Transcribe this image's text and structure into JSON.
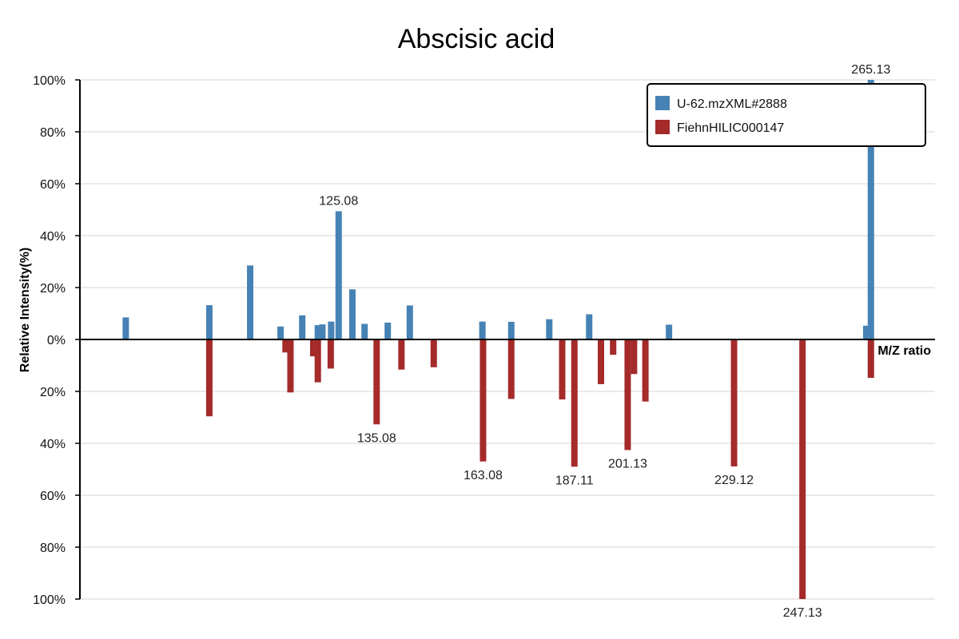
{
  "chart_data": {
    "type": "bar",
    "title": "Abscisic acid",
    "xlabel": "M/Z ratio",
    "ylabel": "Relative Intensity(%)",
    "ylim": [
      -100,
      100
    ],
    "y_ticks": [
      "100%",
      "80%",
      "60%",
      "40%",
      "20%",
      "0%",
      "20%",
      "40%",
      "60%",
      "80%",
      "100%"
    ],
    "xlim": [
      57,
      282
    ],
    "legend_position": "top-right",
    "grid": true,
    "colors": {
      "top": "#4682b4",
      "bottom": "#a52a2a"
    },
    "series": [
      {
        "name": "U-62.mzXML#2888",
        "direction": "up",
        "points": [
          {
            "mz": 69.07,
            "intensity": 8.5
          },
          {
            "mz": 91.05,
            "intensity": 13.2
          },
          {
            "mz": 101.8,
            "intensity": 28.5
          },
          {
            "mz": 109.8,
            "intensity": 5.0
          },
          {
            "mz": 115.5,
            "intensity": 9.3
          },
          {
            "mz": 119.6,
            "intensity": 5.5
          },
          {
            "mz": 120.8,
            "intensity": 5.8
          },
          {
            "mz": 123.1,
            "intensity": 6.9
          },
          {
            "mz": 125.08,
            "intensity": 49.4,
            "label": "125.08"
          },
          {
            "mz": 128.7,
            "intensity": 19.3
          },
          {
            "mz": 131.9,
            "intensity": 6.0
          },
          {
            "mz": 138.0,
            "intensity": 6.5
          },
          {
            "mz": 143.8,
            "intensity": 13.1
          },
          {
            "mz": 162.9,
            "intensity": 6.9
          },
          {
            "mz": 170.5,
            "intensity": 6.8
          },
          {
            "mz": 180.5,
            "intensity": 7.8
          },
          {
            "mz": 191.0,
            "intensity": 9.7
          },
          {
            "mz": 212.0,
            "intensity": 5.7
          },
          {
            "mz": 263.9,
            "intensity": 5.3
          },
          {
            "mz": 265.13,
            "intensity": 100,
            "label": "265.13"
          }
        ]
      },
      {
        "name": "FiehnHILIC000147",
        "direction": "down",
        "points": [
          {
            "mz": 91.05,
            "intensity": 29.6
          },
          {
            "mz": 111.1,
            "intensity": 5.0
          },
          {
            "mz": 112.4,
            "intensity": 20.4
          },
          {
            "mz": 118.4,
            "intensity": 6.5
          },
          {
            "mz": 119.6,
            "intensity": 16.5
          },
          {
            "mz": 123.0,
            "intensity": 11.2
          },
          {
            "mz": 135.08,
            "intensity": 32.7,
            "label": "135.08"
          },
          {
            "mz": 141.6,
            "intensity": 11.6
          },
          {
            "mz": 150.1,
            "intensity": 10.7
          },
          {
            "mz": 163.08,
            "intensity": 47.0,
            "label": "163.08"
          },
          {
            "mz": 170.5,
            "intensity": 22.9
          },
          {
            "mz": 187.11,
            "intensity": 49.0,
            "label": "187.11"
          },
          {
            "mz": 183.9,
            "intensity": 23.1
          },
          {
            "mz": 201.13,
            "intensity": 42.6,
            "label": "201.13"
          },
          {
            "mz": 194.1,
            "intensity": 17.2
          },
          {
            "mz": 197.3,
            "intensity": 5.9
          },
          {
            "mz": 202.8,
            "intensity": 13.3
          },
          {
            "mz": 205.8,
            "intensity": 23.9
          },
          {
            "mz": 229.12,
            "intensity": 48.9,
            "label": "229.12"
          },
          {
            "mz": 247.13,
            "intensity": 100,
            "label": "247.13"
          },
          {
            "mz": 265.13,
            "intensity": 14.8
          }
        ]
      }
    ]
  }
}
